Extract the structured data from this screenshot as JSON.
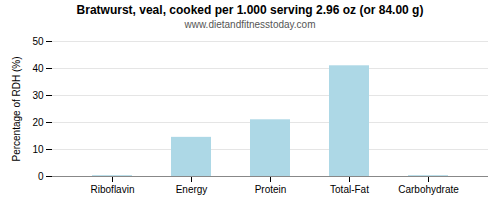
{
  "chart_data": {
    "type": "bar",
    "title": "Bratwurst, veal, cooked per 1.000 serving 2.96 oz (or 84.00 g)",
    "subtitle": "www.dietandfitnesstoday.com",
    "categories": [
      "Riboflavin",
      "Energy",
      "Protein",
      "Total-Fat",
      "Carbohydrate"
    ],
    "values": [
      0.3,
      14.5,
      21.0,
      41.0,
      0.3
    ],
    "color": "#add8e6",
    "ylabel": "Percentage of RDH (%)",
    "ylim": [
      0,
      50
    ],
    "yticks": [
      0,
      10,
      20,
      30,
      40,
      50
    ],
    "grid": true
  }
}
